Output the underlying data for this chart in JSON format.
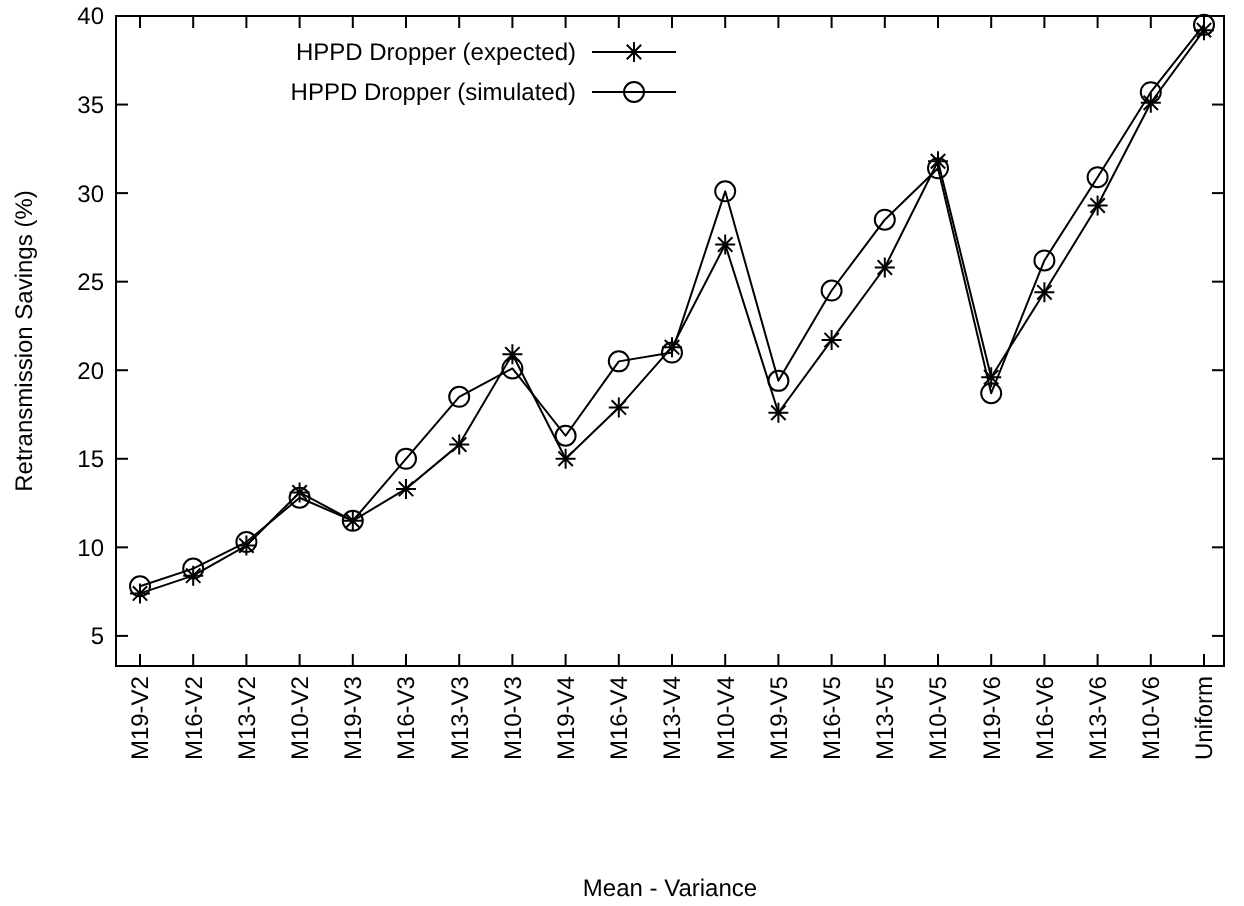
{
  "chart_data": {
    "type": "line",
    "xlabel": "Mean - Variance",
    "ylabel": "Retransmission Savings (%)",
    "categories": [
      "M19-V2",
      "M16-V2",
      "M13-V2",
      "M10-V2",
      "M19-V3",
      "M16-V3",
      "M13-V3",
      "M10-V3",
      "M19-V4",
      "M16-V4",
      "M13-V4",
      "M10-V4",
      "M19-V5",
      "M16-V5",
      "M13-V5",
      "M10-V5",
      "M19-V6",
      "M16-V6",
      "M13-V6",
      "M10-V6",
      "Uniform"
    ],
    "series": [
      {
        "name": "HPPD Dropper (expected)",
        "color": "#000000",
        "marker": "cross",
        "values": [
          7.4,
          8.4,
          10.1,
          13.1,
          11.5,
          13.3,
          15.8,
          20.9,
          15.0,
          17.9,
          21.3,
          27.1,
          17.6,
          21.7,
          25.8,
          31.8,
          19.6,
          24.4,
          29.3,
          35.1,
          39.2
        ]
      },
      {
        "name": "HPPD Dropper (simulated)",
        "color": "#000000",
        "marker": "circle",
        "values": [
          7.8,
          8.8,
          10.3,
          12.8,
          11.5,
          15.0,
          18.5,
          20.1,
          16.3,
          20.5,
          21.0,
          30.1,
          19.4,
          24.5,
          28.5,
          31.4,
          18.7,
          26.2,
          30.9,
          35.7,
          39.5
        ]
      }
    ],
    "ylim": [
      3.3,
      40
    ],
    "yticks": [
      5,
      10,
      15,
      20,
      25,
      30,
      35,
      40
    ],
    "grid": false,
    "legend": "top left",
    "line_style": "solid"
  }
}
